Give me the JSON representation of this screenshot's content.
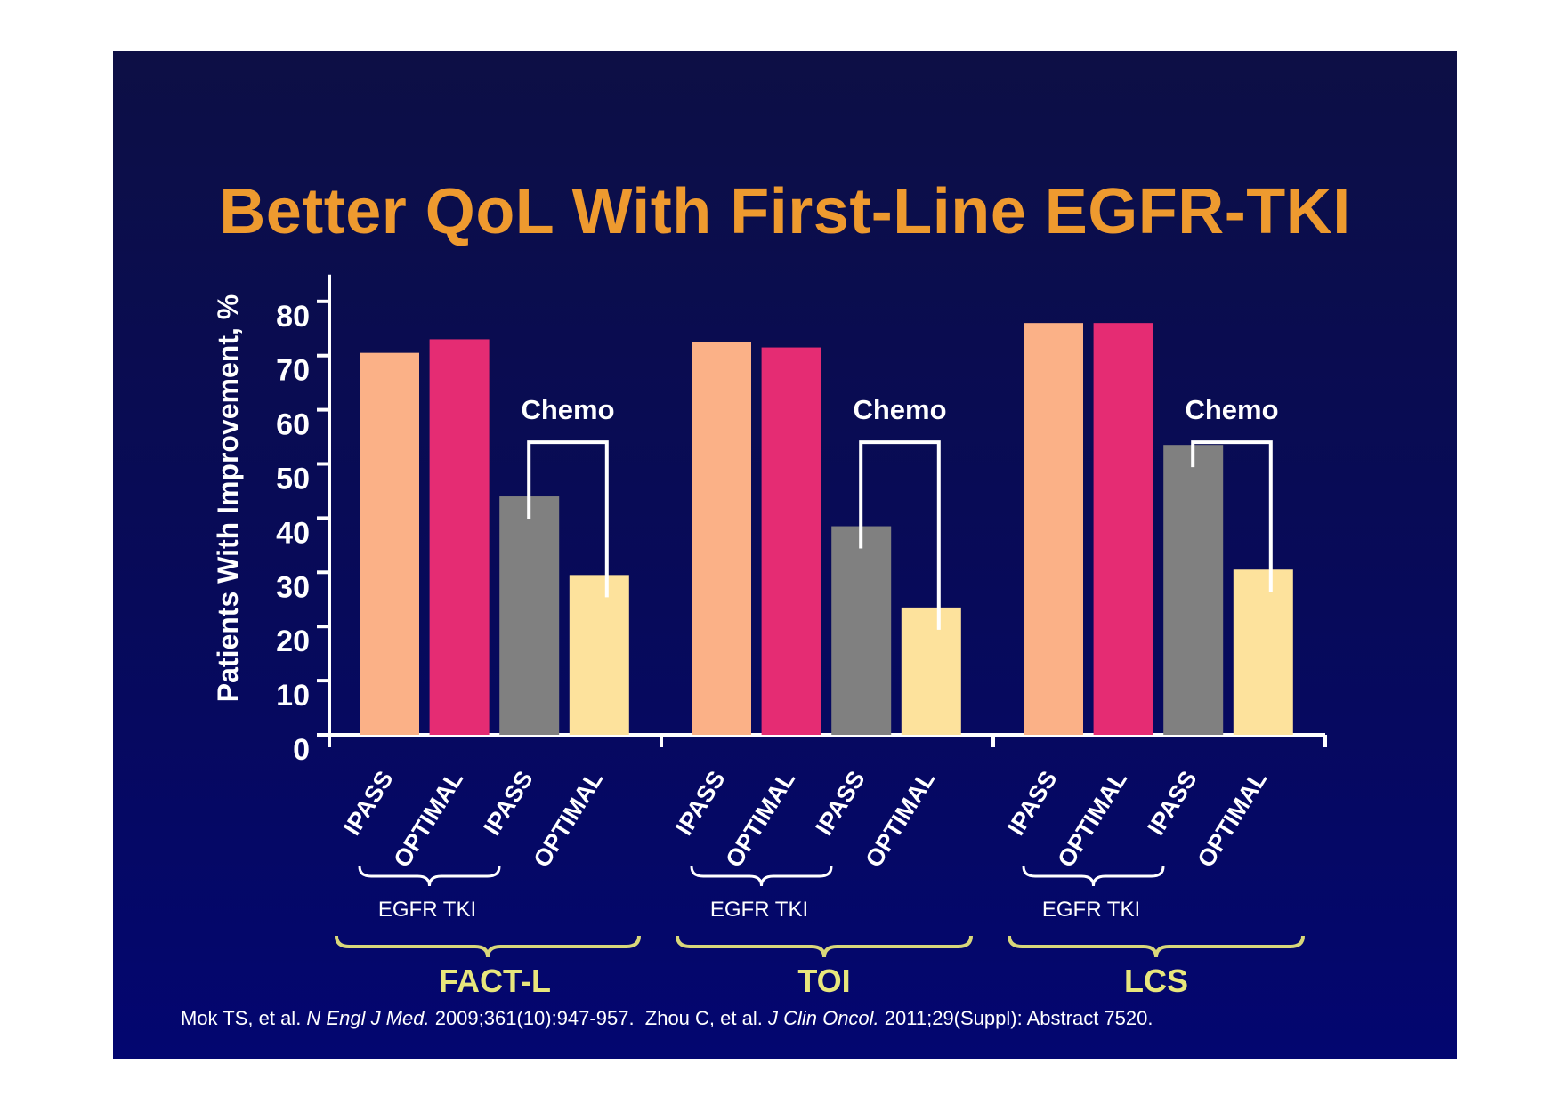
{
  "slide": {
    "title": "Better QoL With First-Line EGFR-TKI",
    "citation": {
      "part1": "Mok TS, et al. ",
      "journal1": "N Engl J Med.",
      "part2": " 2009;361(10):947-957.  Zhou C, et al. ",
      "journal2": "J Clin Oncol.",
      "part3": " 2011;29(Suppl): Abstract 7520."
    }
  },
  "colors": {
    "background": "#07095a",
    "title": "#ee9a2f",
    "axis": "#ffffff",
    "bracket_yellow": "#d9d77a",
    "group_label": "#e8e67c"
  },
  "chart_data": {
    "type": "bar",
    "ylabel": "Patients With Improvement, %",
    "ylim": [
      0,
      80
    ],
    "yticks": [
      0,
      10,
      20,
      30,
      40,
      50,
      60,
      70,
      80
    ],
    "groups": [
      "FACT-L",
      "TOI",
      "LCS"
    ],
    "bar_labels": [
      "IPASS",
      "OPTIMAL",
      "IPASS",
      "OPTIMAL"
    ],
    "bar_colors": [
      "#fbb187",
      "#e52c73",
      "#808080",
      "#fde29c"
    ],
    "series": [
      {
        "study": "IPASS",
        "arm": "EGFR TKI",
        "values": [
          70.5,
          72.5,
          76
        ]
      },
      {
        "study": "OPTIMAL",
        "arm": "EGFR TKI",
        "values": [
          73,
          71.5,
          76
        ]
      },
      {
        "study": "IPASS",
        "arm": "Chemo",
        "values": [
          44,
          38.5,
          53.5
        ]
      },
      {
        "study": "OPTIMAL",
        "arm": "Chemo",
        "values": [
          29.5,
          23.5,
          30.5
        ]
      }
    ],
    "sub_bracket_label": "EGFR TKI",
    "comparison_label": "Chemo"
  }
}
